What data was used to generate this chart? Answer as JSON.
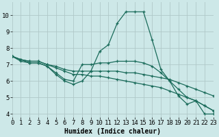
{
  "bg_color": "#cde8e8",
  "grid_color": "#b0c8c8",
  "line_color": "#1a6b5a",
  "series": [
    {
      "x": [
        0,
        1,
        2,
        3,
        4,
        5,
        6,
        7,
        8,
        9,
        10,
        11,
        12,
        13,
        14,
        15,
        16,
        17,
        18,
        19,
        20,
        21,
        22,
        23
      ],
      "y": [
        7.5,
        7.2,
        7.1,
        7.1,
        6.9,
        6.4,
        6.0,
        5.8,
        6.0,
        6.6,
        7.8,
        8.2,
        9.5,
        10.2,
        10.2,
        10.2,
        8.5,
        6.7,
        6.0,
        5.1,
        4.6,
        4.8,
        4.0,
        4.0
      ]
    },
    {
      "x": [
        0,
        1,
        2,
        3,
        4,
        5,
        6,
        7,
        8,
        9,
        10,
        11,
        12,
        13,
        14,
        15,
        16,
        17,
        18,
        19,
        20,
        21,
        22,
        23
      ],
      "y": [
        7.5,
        7.3,
        7.2,
        7.2,
        7.0,
        6.9,
        6.7,
        6.6,
        6.6,
        6.6,
        6.6,
        6.6,
        6.6,
        6.5,
        6.5,
        6.4,
        6.3,
        6.2,
        6.1,
        5.9,
        5.7,
        5.5,
        5.3,
        5.1
      ]
    },
    {
      "x": [
        0,
        1,
        2,
        3,
        4,
        5,
        6,
        7,
        8,
        9,
        10,
        11,
        12,
        13,
        14,
        15,
        16,
        17,
        18,
        19,
        20,
        21,
        22,
        23
      ],
      "y": [
        7.5,
        7.3,
        7.2,
        7.2,
        7.0,
        6.8,
        6.6,
        6.4,
        6.4,
        6.3,
        6.3,
        6.2,
        6.1,
        6.0,
        5.9,
        5.8,
        5.7,
        5.6,
        5.4,
        5.2,
        5.0,
        4.8,
        4.5,
        4.2
      ]
    },
    {
      "x": [
        0,
        1,
        2,
        3,
        4,
        5,
        6,
        7,
        8,
        9,
        10,
        11,
        12,
        13,
        14,
        15,
        16,
        17,
        18,
        19,
        20,
        21,
        22,
        23
      ],
      "y": [
        7.5,
        7.3,
        7.1,
        7.1,
        6.9,
        6.5,
        6.1,
        6.0,
        7.0,
        7.0,
        7.1,
        7.1,
        7.2,
        7.2,
        7.2,
        7.1,
        6.9,
        6.5,
        6.0,
        5.5,
        5.0,
        4.8,
        4.5,
        4.2
      ]
    }
  ],
  "xlim": [
    0,
    23
  ],
  "ylim": [
    3.8,
    10.8
  ],
  "yticks": [
    4,
    5,
    6,
    7,
    8,
    9,
    10
  ],
  "xticks": [
    0,
    1,
    2,
    3,
    4,
    5,
    6,
    7,
    8,
    9,
    10,
    11,
    12,
    13,
    14,
    15,
    16,
    17,
    18,
    19,
    20,
    21,
    22,
    23
  ],
  "xlabel": "Humidex (Indice chaleur)",
  "xlabel_fontsize": 7,
  "tick_fontsize": 6.5
}
